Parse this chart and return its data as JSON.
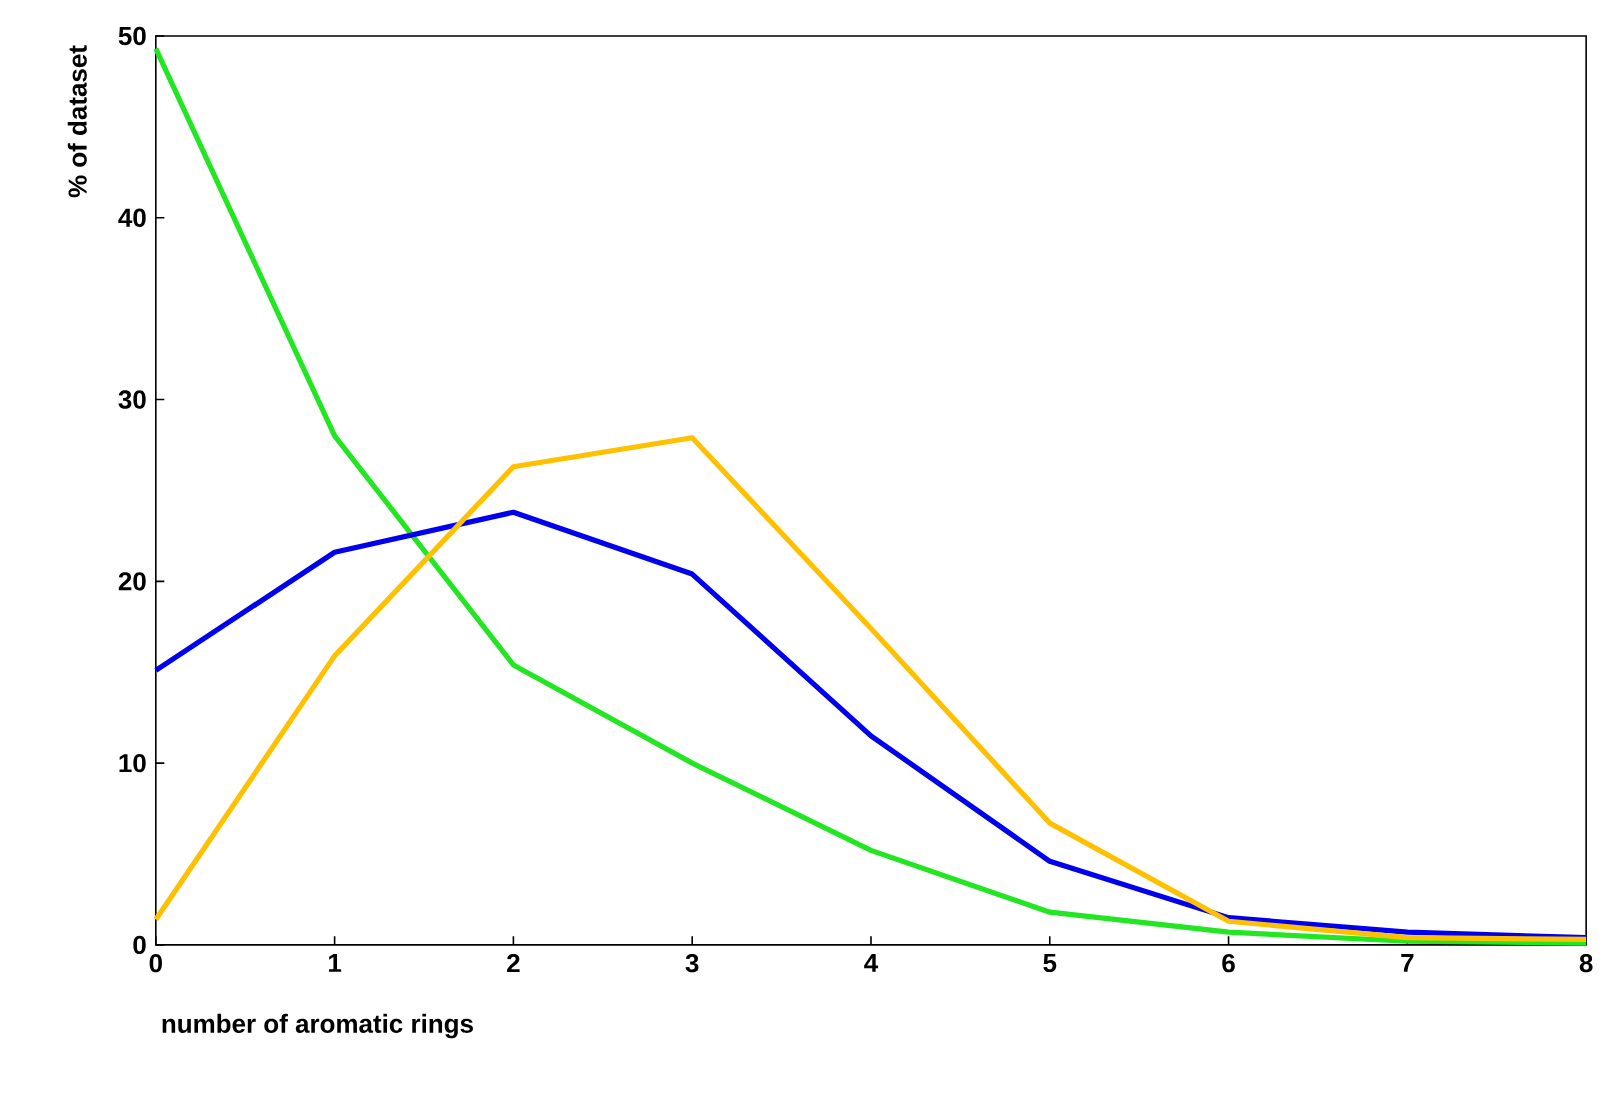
{
  "chart_data": {
    "type": "line",
    "xlabel": "number of aromatic rings",
    "ylabel": "% of dataset",
    "x": [
      0,
      1,
      2,
      3,
      4,
      5,
      6,
      7,
      8
    ],
    "series": [
      {
        "color": "#22e622",
        "values": [
          49.3,
          28.0,
          15.4,
          10.0,
          5.2,
          1.8,
          0.7,
          0.2,
          0.1
        ]
      },
      {
        "color": "#0000ee",
        "values": [
          15.1,
          21.6,
          23.8,
          20.4,
          11.5,
          4.6,
          1.5,
          0.7,
          0.4
        ]
      },
      {
        "color": "#ffc000",
        "values": [
          1.4,
          15.9,
          26.3,
          27.9,
          17.4,
          6.7,
          1.3,
          0.4,
          0.3
        ]
      }
    ],
    "xlim": [
      0,
      8
    ],
    "ylim": [
      0,
      50
    ],
    "xticks": [
      0,
      1,
      2,
      3,
      4,
      5,
      6,
      7,
      8
    ],
    "yticks": [
      0,
      10,
      20,
      30,
      40,
      50
    ],
    "grid": false,
    "marker": "none",
    "line_style": "solid"
  }
}
